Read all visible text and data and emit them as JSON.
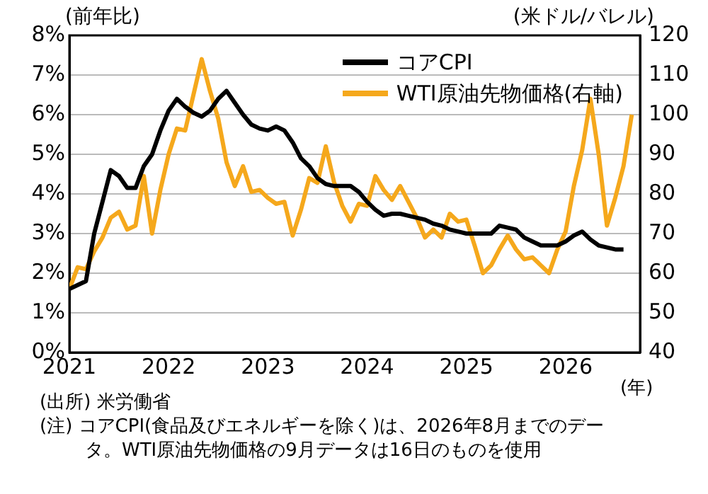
{
  "chart_data": {
    "type": "line",
    "xlabel": "(年)",
    "ylabel": "(前年比)",
    "y2label": "(米ドル/バレル)",
    "x": [
      "2021-01",
      "2021-02",
      "2021-03",
      "2021-04",
      "2021-05",
      "2021-06",
      "2021-07",
      "2021-08",
      "2021-09",
      "2021-10",
      "2021-11",
      "2021-12",
      "2022-01",
      "2022-02",
      "2022-03",
      "2022-04",
      "2022-05",
      "2022-06",
      "2022-07",
      "2022-08",
      "2022-09",
      "2022-10",
      "2022-11",
      "2022-12",
      "2023-01",
      "2023-02",
      "2023-03",
      "2023-04",
      "2023-05",
      "2023-06",
      "2023-07",
      "2023-08",
      "2023-09",
      "2023-10",
      "2023-11",
      "2023-12",
      "2024-01",
      "2024-02",
      "2024-03",
      "2024-04",
      "2024-05",
      "2024-06",
      "2024-07",
      "2024-08",
      "2024-09",
      "2024-10",
      "2024-11",
      "2024-12",
      "2025-01",
      "2025-02",
      "2025-03",
      "2025-04",
      "2025-05",
      "2025-06",
      "2025-07",
      "2025-08",
      "2025-09",
      "2025-10",
      "2025-11",
      "2025-12",
      "2026-01",
      "2026-02",
      "2026-03",
      "2026-04",
      "2026-05",
      "2026-06",
      "2026-07",
      "2026-08",
      "2026-09"
    ],
    "series": [
      {
        "name": "コアCPI",
        "color": "#000000",
        "values": [
          1.6,
          1.7,
          1.8,
          3.0,
          3.8,
          4.6,
          4.45,
          4.15,
          4.15,
          4.7,
          5.0,
          5.6,
          6.1,
          6.4,
          6.2,
          6.05,
          5.95,
          6.1,
          6.4,
          6.6,
          6.3,
          6.0,
          5.75,
          5.65,
          5.6,
          5.7,
          5.6,
          5.3,
          4.9,
          4.7,
          4.4,
          4.25,
          4.2,
          4.2,
          4.2,
          4.05,
          3.8,
          3.6,
          3.45,
          3.5,
          3.5,
          3.45,
          3.4,
          3.35,
          3.25,
          3.2,
          3.1,
          3.05,
          3.0,
          3.0,
          3.0,
          3.0,
          3.2,
          3.15,
          3.1,
          2.9,
          2.8,
          2.7,
          2.7,
          2.7,
          2.8,
          2.95,
          3.05,
          2.85,
          2.7,
          2.65,
          2.6,
          2.6,
          null
        ]
      },
      {
        "name": "WTI原油先物価格(右軸)",
        "color": "#f5a81c",
        "axis": "y2",
        "values": [
          56,
          61.5,
          61,
          65.5,
          69,
          74,
          75.5,
          71,
          72,
          84.5,
          70,
          81,
          90,
          96.5,
          96,
          105,
          114,
          106,
          99,
          88,
          82,
          87,
          80.5,
          81,
          79,
          77.5,
          78,
          69.5,
          76,
          84,
          82.8,
          92,
          83,
          77,
          73,
          77.5,
          77,
          84.5,
          81,
          78.5,
          82,
          78,
          74,
          69,
          71,
          69,
          75,
          73,
          73.5,
          67,
          60,
          62,
          66,
          69.5,
          66,
          63.5,
          64,
          62,
          60,
          66,
          70.5,
          82,
          91,
          104,
          90,
          72,
          79,
          87,
          100
        ]
      }
    ],
    "xlim": [
      "2021-01",
      "2026-10"
    ],
    "xticks": [
      {
        "value": "2021-01",
        "label": "2021"
      },
      {
        "value": "2022-01",
        "label": "2022"
      },
      {
        "value": "2023-01",
        "label": "2023"
      },
      {
        "value": "2024-01",
        "label": "2024"
      },
      {
        "value": "2025-01",
        "label": "2025"
      },
      {
        "value": "2026-01",
        "label": "2026"
      }
    ],
    "ylim": [
      0,
      8
    ],
    "yticks": [
      {
        "value": 0,
        "label": "0%"
      },
      {
        "value": 1,
        "label": "1%"
      },
      {
        "value": 2,
        "label": "2%"
      },
      {
        "value": 3,
        "label": "3%"
      },
      {
        "value": 4,
        "label": "4%"
      },
      {
        "value": 5,
        "label": "5%"
      },
      {
        "value": 6,
        "label": "6%"
      },
      {
        "value": 7,
        "label": "7%"
      },
      {
        "value": 8,
        "label": "8%"
      }
    ],
    "y2lim": [
      40,
      120
    ],
    "y2ticks": [
      40,
      50,
      60,
      70,
      80,
      90,
      100,
      110,
      120
    ],
    "grid": "y",
    "legend": "top right",
    "marker": "none",
    "line_style": "solid",
    "annotations": [
      "(出所) 米労働省",
      "(注) コアCPI(食品及びエネルギーを除く)は、2026年8月までのデータ。WTI原油先物価格の9月データは16日のものを使用"
    ]
  }
}
